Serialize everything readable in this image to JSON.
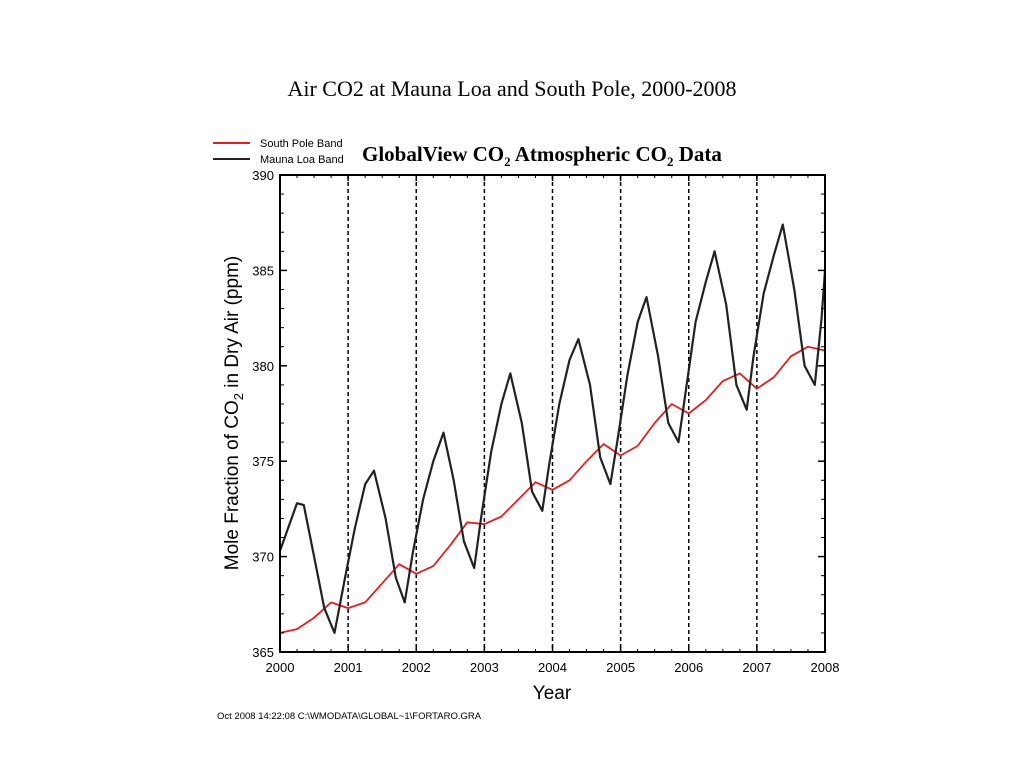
{
  "slide": {
    "title": "Air CO2 at Mauna Loa and South Pole, 2000-2008"
  },
  "chart_data": {
    "type": "line",
    "title_parts": [
      "GlobalView CO",
      "2",
      " Atmospheric CO",
      "2",
      " Data"
    ],
    "xlabel": "Year",
    "ylabel_parts": [
      "Mole Fraction of CO",
      "2",
      " in Dry Air (ppm)"
    ],
    "xlim": [
      2000,
      2008
    ],
    "ylim": [
      365,
      390
    ],
    "x_ticks": [
      2000,
      2001,
      2002,
      2003,
      2004,
      2005,
      2006,
      2007,
      2008
    ],
    "x_tick_labels": [
      "2000",
      "2001",
      "2002",
      "2003",
      "2004",
      "2005",
      "2006",
      "2007",
      "2008"
    ],
    "y_ticks": [
      365,
      370,
      375,
      380,
      385,
      390
    ],
    "y_tick_labels": [
      "365",
      "370",
      "375",
      "380",
      "385",
      "390"
    ],
    "vertical_dashed_lines_at": [
      2001,
      2002,
      2003,
      2004,
      2005,
      2006,
      2007
    ],
    "legend_position": "top-left",
    "series": [
      {
        "name": "South Pole Band",
        "color": "#e02020",
        "x": [
          2000.0,
          2000.25,
          2000.5,
          2000.75,
          2001.0,
          2001.25,
          2001.5,
          2001.75,
          2002.0,
          2002.25,
          2002.5,
          2002.75,
          2003.0,
          2003.25,
          2003.5,
          2003.75,
          2004.0,
          2004.25,
          2004.5,
          2004.75,
          2005.0,
          2005.25,
          2005.5,
          2005.75,
          2006.0,
          2006.25,
          2006.5,
          2006.75,
          2007.0,
          2007.25,
          2007.5,
          2007.75,
          2008.0
        ],
        "y": [
          366.0,
          366.2,
          366.8,
          367.6,
          367.3,
          367.6,
          368.6,
          369.6,
          369.1,
          369.5,
          370.6,
          371.8,
          371.7,
          372.1,
          373.0,
          373.9,
          373.5,
          374.0,
          375.0,
          375.9,
          375.3,
          375.8,
          377.0,
          378.0,
          377.5,
          378.2,
          379.2,
          379.6,
          378.8,
          379.4,
          380.5,
          381.0,
          380.8
        ]
      },
      {
        "name": "Mauna Loa Band",
        "color": "#222222",
        "x": [
          2000.0,
          2000.1,
          2000.25,
          2000.35,
          2000.5,
          2000.65,
          2000.8,
          2000.95,
          2001.1,
          2001.25,
          2001.38,
          2001.55,
          2001.7,
          2001.83,
          2001.95,
          2002.1,
          2002.25,
          2002.4,
          2002.55,
          2002.7,
          2002.85,
          2002.95,
          2003.1,
          2003.25,
          2003.38,
          2003.55,
          2003.7,
          2003.85,
          2003.95,
          2004.1,
          2004.25,
          2004.38,
          2004.55,
          2004.7,
          2004.85,
          2004.95,
          2005.1,
          2005.25,
          2005.38,
          2005.55,
          2005.7,
          2005.85,
          2005.95,
          2006.1,
          2006.25,
          2006.38,
          2006.55,
          2006.7,
          2006.85,
          2006.95,
          2007.1,
          2007.25,
          2007.38,
          2007.55,
          2007.7,
          2007.85,
          2007.95,
          2008.0
        ],
        "y": [
          370.3,
          371.3,
          372.8,
          372.7,
          370.0,
          367.3,
          366.0,
          368.8,
          371.5,
          373.8,
          374.5,
          372.0,
          368.9,
          367.6,
          370.2,
          373.0,
          375.0,
          376.5,
          374.0,
          370.8,
          369.4,
          372.0,
          375.5,
          378.0,
          379.6,
          377.0,
          373.4,
          372.4,
          374.8,
          378.0,
          380.3,
          381.4,
          379.0,
          375.2,
          373.8,
          376.0,
          379.5,
          382.3,
          383.6,
          380.5,
          377.0,
          376.0,
          378.5,
          382.3,
          384.4,
          386.0,
          383.2,
          379.0,
          377.7,
          380.5,
          383.8,
          385.8,
          387.4,
          384.0,
          380.0,
          379.0,
          382.5,
          385.0
        ]
      }
    ]
  },
  "footer": {
    "text": "Oct 2008  14:22:08 C:\\WMODATA\\GLOBAL~1\\FORTARO.GRA"
  }
}
